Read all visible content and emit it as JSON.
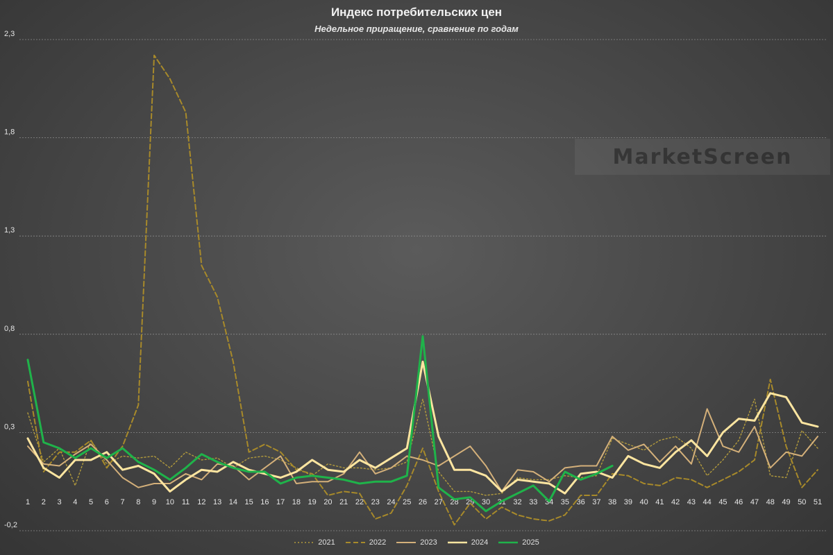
{
  "title": "Индекс потребительских цен",
  "subtitle": "Недельное приращение, сравнение по годам",
  "watermark": "MarketScreen",
  "chart_data": {
    "type": "line",
    "ylim": [
      -0.2,
      2.3
    ],
    "y_ticks": [
      -0.2,
      0.3,
      0.8,
      1.3,
      1.8,
      2.3
    ],
    "y_tick_labels": [
      "-0,2",
      "0,3",
      "0,8",
      "1,3",
      "1,8",
      "2,3"
    ],
    "grid": true,
    "legend_position": "bottom",
    "x": [
      1,
      2,
      3,
      4,
      5,
      6,
      7,
      8,
      9,
      10,
      11,
      12,
      13,
      14,
      15,
      16,
      17,
      18,
      19,
      20,
      21,
      22,
      23,
      24,
      25,
      26,
      27,
      28,
      29,
      30,
      31,
      32,
      33,
      34,
      35,
      36,
      37,
      38,
      39,
      40,
      41,
      42,
      43,
      44,
      45,
      46,
      47,
      48,
      49,
      50,
      51
    ],
    "series": [
      {
        "name": "2021",
        "color": "#b39b3c",
        "dash": "dot",
        "width": 1.4,
        "values": [
          0.4,
          0.15,
          0.22,
          0.03,
          0.26,
          0.14,
          0.18,
          0.17,
          0.18,
          0.12,
          0.2,
          0.16,
          0.17,
          0.12,
          0.17,
          0.18,
          0.16,
          0.12,
          0.08,
          0.14,
          0.12,
          0.12,
          0.11,
          0.12,
          0.15,
          0.47,
          0.1,
          0.0,
          0.0,
          -0.02,
          -0.01,
          0.07,
          0.06,
          0.06,
          0.08,
          0.07,
          0.08,
          0.27,
          0.24,
          0.21,
          0.26,
          0.28,
          0.22,
          0.08,
          0.16,
          0.26,
          0.47,
          0.08,
          0.07,
          0.31,
          0.22
        ]
      },
      {
        "name": "2022",
        "color": "#a88a2a",
        "dash": "dash",
        "width": 2.0,
        "values": [
          0.56,
          0.1,
          0.2,
          0.2,
          0.26,
          0.12,
          0.23,
          0.44,
          2.22,
          2.1,
          1.93,
          1.15,
          0.99,
          0.66,
          0.2,
          0.24,
          0.2,
          0.11,
          0.09,
          -0.02,
          0.0,
          -0.01,
          -0.14,
          -0.11,
          0.03,
          0.22,
          0.0,
          -0.17,
          -0.06,
          -0.14,
          -0.08,
          -0.12,
          -0.14,
          -0.15,
          -0.12,
          -0.02,
          -0.02,
          0.09,
          0.08,
          0.04,
          0.03,
          0.07,
          0.06,
          0.02,
          0.06,
          0.1,
          0.16,
          0.57,
          0.23,
          0.02,
          0.11
        ]
      },
      {
        "name": "2023",
        "color": "#d4b07a",
        "dash": "solid",
        "width": 2.0,
        "values": [
          0.23,
          0.14,
          0.13,
          0.19,
          0.24,
          0.16,
          0.07,
          0.02,
          0.04,
          0.04,
          0.09,
          0.06,
          0.14,
          0.13,
          0.06,
          0.12,
          0.18,
          0.04,
          0.05,
          0.05,
          0.09,
          0.2,
          0.09,
          0.12,
          0.18,
          0.16,
          0.13,
          0.18,
          0.23,
          0.13,
          0.0,
          0.11,
          0.1,
          0.05,
          0.12,
          0.13,
          0.13,
          0.28,
          0.21,
          0.24,
          0.15,
          0.23,
          0.14,
          0.42,
          0.23,
          0.2,
          0.33,
          0.12,
          0.2,
          0.18,
          0.28
        ]
      },
      {
        "name": "2024",
        "color": "#fde5a0",
        "dash": "solid",
        "width": 3.0,
        "values": [
          0.27,
          0.12,
          0.07,
          0.16,
          0.16,
          0.2,
          0.11,
          0.13,
          0.09,
          0.0,
          0.06,
          0.11,
          0.1,
          0.15,
          0.11,
          0.09,
          0.07,
          0.1,
          0.16,
          0.11,
          0.1,
          0.16,
          0.12,
          0.17,
          0.22,
          0.66,
          0.28,
          0.11,
          0.11,
          0.08,
          0.0,
          0.06,
          0.05,
          0.04,
          -0.01,
          0.09,
          0.1,
          0.07,
          0.18,
          0.14,
          0.12,
          0.2,
          0.26,
          0.18,
          0.3,
          0.37,
          0.36,
          0.5,
          0.48,
          0.35,
          0.33
        ]
      },
      {
        "name": "2025",
        "color": "#1fb34a",
        "dash": "solid",
        "width": 3.0,
        "values": [
          0.67,
          0.25,
          0.22,
          0.17,
          0.22,
          0.17,
          0.22,
          0.15,
          0.11,
          0.06,
          0.12,
          0.19,
          0.15,
          0.12,
          0.1,
          0.1,
          0.04,
          0.07,
          0.08,
          0.07,
          0.06,
          0.04,
          0.05,
          0.05,
          0.08,
          0.79,
          0.02,
          -0.04,
          -0.03,
          -0.1,
          -0.05,
          -0.01,
          0.03,
          -0.05,
          0.1,
          0.06,
          0.09,
          0.13,
          null,
          null,
          null,
          null,
          null,
          null,
          null,
          null,
          null,
          null,
          null,
          null,
          null
        ]
      }
    ]
  }
}
